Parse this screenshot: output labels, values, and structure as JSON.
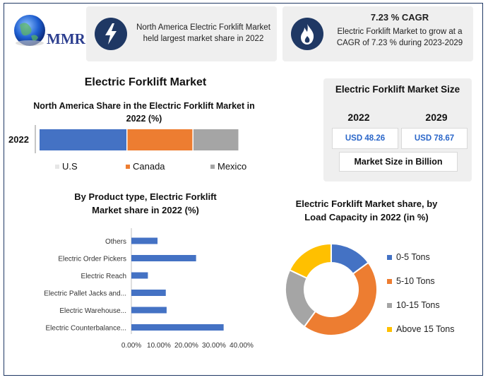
{
  "logo": {
    "text": "MMR"
  },
  "headline_cards": [
    {
      "icon": "lightning-icon",
      "text": "North America Electric Forklift Market held largest market share in 2022"
    },
    {
      "icon": "flame-icon",
      "title": "7.23 % CAGR",
      "text": "Electric Forklift Market to grow at a CAGR of 7.23 % during 2023-2029"
    }
  ],
  "main_title": "Electric Forklift Market",
  "market_size": {
    "title": "Electric Forklift Market Size",
    "years": [
      "2022",
      "2029"
    ],
    "values": [
      "USD 48.26",
      "USD 78.67"
    ],
    "unit_label": "Market Size in Billion"
  },
  "colors": {
    "blue": "#4472c4",
    "orange": "#ed7d31",
    "gray": "#a5a5a5",
    "yellow": "#ffc000",
    "navy": "#1f3864"
  },
  "chart_data": [
    {
      "type": "bar",
      "orientation": "horizontal-stacked",
      "title": "North America Share in the Electric Forklift Market in 2022 (%)",
      "categories": [
        "2022"
      ],
      "series": [
        {
          "name": "U.S",
          "values": [
            44
          ]
        },
        {
          "name": "Canada",
          "values": [
            33
          ]
        },
        {
          "name": "Mexico",
          "values": [
            23
          ]
        }
      ],
      "legend": "bottom"
    },
    {
      "type": "bar",
      "orientation": "horizontal",
      "title": "By Product type, Electric Forklift Market share in 2022  (%)",
      "categories": [
        "Others",
        "Electric Order Pickers",
        "Electric Reach",
        "Electric Pallet Jacks and...",
        "Electric Warehouse...",
        "Electric Counterbalance..."
      ],
      "values": [
        9.5,
        23.5,
        6,
        12.5,
        12.8,
        33.5
      ],
      "xlim": [
        0,
        40
      ],
      "xticks": [
        "0.00%",
        "10.00%",
        "20.00%",
        "30.00%",
        "40.00%"
      ],
      "grid": false
    },
    {
      "type": "pie",
      "style": "donut",
      "title": "Electric Forklift Market share, by Load Capacity in 2022 (in %)",
      "categories": [
        "0-5 Tons",
        "5-10 Tons",
        "10-15 Tons",
        "Above 15 Tons"
      ],
      "values": [
        15,
        45,
        22,
        18
      ],
      "legend": "right"
    }
  ]
}
